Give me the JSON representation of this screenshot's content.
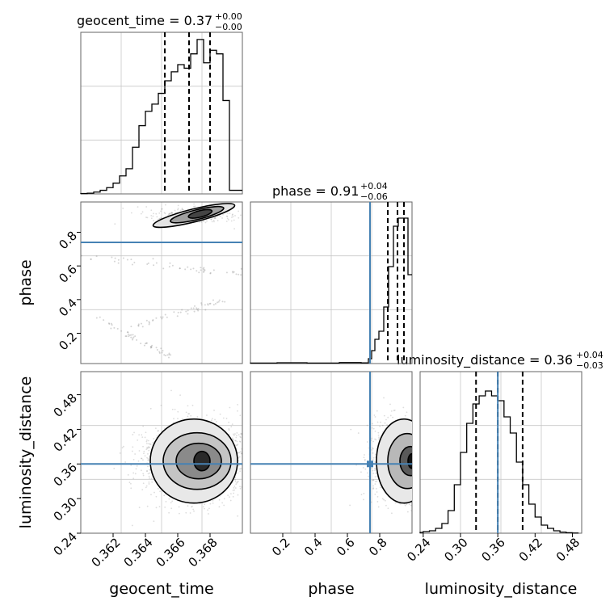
{
  "chart_data": [
    {
      "panel": "geocent_time-marginal",
      "type": "histogram",
      "title": {
        "prefix": "geocent_time = 0.37",
        "plus": "+0.00",
        "minus": "−0.00"
      },
      "x": [
        0.3602,
        0.3606,
        0.361,
        0.3614,
        0.3618,
        0.3622,
        0.3626,
        0.363,
        0.3634,
        0.3638,
        0.3642,
        0.3646,
        0.365,
        0.3654,
        0.3658,
        0.3662,
        0.3666,
        0.367,
        0.3674,
        0.3678,
        0.3682,
        0.3686,
        0.369,
        0.3694,
        0.3698
      ],
      "values": [
        0.002,
        0.004,
        0.01,
        0.02,
        0.035,
        0.06,
        0.1,
        0.14,
        0.26,
        0.38,
        0.46,
        0.5,
        0.56,
        0.63,
        0.68,
        0.72,
        0.7,
        0.78,
        0.86,
        0.73,
        0.8,
        0.78,
        0.52,
        0.02,
        0.02
      ],
      "quantile_lines": [
        0.3652,
        0.3667,
        0.368
      ],
      "xlim": [
        0.36,
        0.37
      ],
      "ylim": [
        0,
        0.9
      ]
    },
    {
      "panel": "phase-marginal",
      "type": "histogram",
      "title": {
        "prefix": "phase = 0.91",
        "plus": "+0.04",
        "minus": "−0.06"
      },
      "x": [
        0.08,
        0.25,
        0.45,
        0.65,
        0.72,
        0.74,
        0.76,
        0.78,
        0.81,
        0.84,
        0.87,
        0.9,
        0.93,
        0.96,
        0.99
      ],
      "values": [
        0.003,
        0.005,
        0.003,
        0.006,
        0.004,
        0.03,
        0.08,
        0.15,
        0.2,
        0.35,
        0.6,
        0.85,
        0.9,
        0.9,
        0.55
      ],
      "quantile_lines": [
        0.85,
        0.91,
        0.95
      ],
      "truth": 0.74,
      "xlim": [
        0.0,
        1.0
      ],
      "ylim": [
        0,
        1.0
      ]
    },
    {
      "panel": "luminosity_distance-marginal",
      "type": "histogram",
      "title": {
        "prefix": "luminosity_distance = 0.36",
        "plus": "+0.04",
        "minus": "−0.03"
      },
      "x": [
        0.235,
        0.245,
        0.255,
        0.265,
        0.275,
        0.285,
        0.295,
        0.305,
        0.315,
        0.325,
        0.335,
        0.345,
        0.355,
        0.365,
        0.375,
        0.385,
        0.395,
        0.405,
        0.415,
        0.425,
        0.435,
        0.445,
        0.455,
        0.465,
        0.475,
        0.485
      ],
      "values": [
        0.005,
        0.01,
        0.015,
        0.03,
        0.06,
        0.14,
        0.3,
        0.5,
        0.68,
        0.8,
        0.85,
        0.88,
        0.85,
        0.82,
        0.72,
        0.62,
        0.44,
        0.3,
        0.18,
        0.1,
        0.05,
        0.03,
        0.015,
        0.007,
        0.003,
        0.001
      ],
      "quantile_lines": [
        0.325,
        0.36,
        0.4
      ],
      "truth": 0.36,
      "xlim": [
        0.235,
        0.495
      ],
      "ylim": [
        0,
        1.0
      ]
    },
    {
      "panel": "phase-vs-geocent_time",
      "type": "contour",
      "x_param": "geocent_time",
      "y_param": "phase",
      "xlim": [
        0.36,
        0.37
      ],
      "ylim": [
        0.02,
        0.98
      ],
      "truth_y": 0.74,
      "density_center": [
        0.367,
        0.9
      ],
      "scatter_trails": [
        {
          "x0": 0.36,
          "y0": 0.66,
          "x1": 0.37,
          "y1": 0.55
        },
        {
          "x0": 0.3632,
          "y0": 0.24,
          "x1": 0.369,
          "y1": 0.4
        },
        {
          "x0": 0.361,
          "y0": 0.3,
          "x1": 0.3655,
          "y1": 0.06
        }
      ]
    },
    {
      "panel": "luminosity_distance-vs-geocent_time",
      "type": "contour",
      "x_param": "geocent_time",
      "y_param": "luminosity_distance",
      "xlim": [
        0.36,
        0.37
      ],
      "ylim": [
        0.24,
        0.52
      ],
      "truth_y": 0.36,
      "density_center": [
        0.3672,
        0.365
      ]
    },
    {
      "panel": "luminosity_distance-vs-phase",
      "type": "contour",
      "x_param": "phase",
      "y_param": "luminosity_distance",
      "xlim": [
        0.0,
        1.0
      ],
      "ylim": [
        0.24,
        0.52
      ],
      "truth_x": 0.74,
      "truth_y": 0.36,
      "density_center": [
        0.92,
        0.365
      ]
    }
  ],
  "axes": {
    "geocent_time": {
      "label": "geocent_time",
      "ticks": [
        "0.362",
        "0.364",
        "0.366",
        "0.368"
      ],
      "tick_values": [
        0.362,
        0.364,
        0.366,
        0.368
      ]
    },
    "phase": {
      "label": "phase",
      "ticks": [
        "0.2",
        "0.4",
        "0.6",
        "0.8"
      ],
      "tick_values": [
        0.2,
        0.4,
        0.6,
        0.8
      ]
    },
    "luminosity_distance": {
      "label": "luminosity_distance",
      "ticks": [
        "0.24",
        "0.30",
        "0.36",
        "0.42",
        "0.48"
      ],
      "tick_values": [
        0.24,
        0.3,
        0.36,
        0.42,
        0.48
      ]
    }
  },
  "colors": {
    "truth": "#4682b4",
    "hist": "#000000",
    "grid": "#c8c8c8"
  }
}
